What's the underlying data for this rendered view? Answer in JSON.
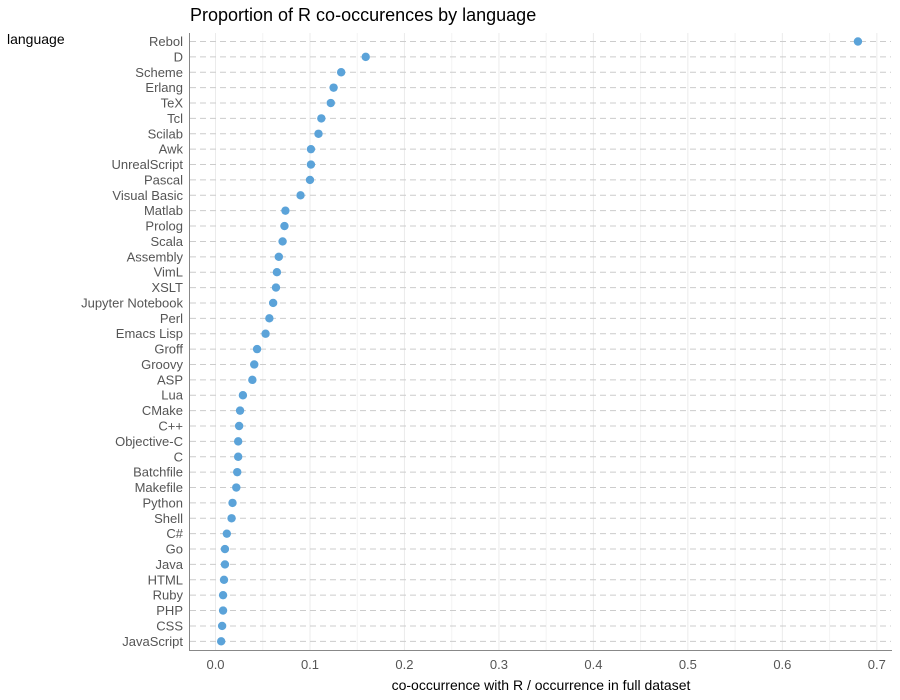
{
  "chart_data": {
    "type": "scatter",
    "title": "Proportion of R co-occurences by language",
    "xlabel": "co-occurrence with R / occurrence in full dataset",
    "ylabel": "language",
    "xlim": [
      -0.027,
      0.715
    ],
    "xticks": [
      "0.0",
      "0.1",
      "0.2",
      "0.3",
      "0.4",
      "0.5",
      "0.6",
      "0.7"
    ],
    "grid": true,
    "point_color": "#5ba3d9",
    "categories": [
      "Rebol",
      "D",
      "Scheme",
      "Erlang",
      "TeX",
      "Tcl",
      "Scilab",
      "Awk",
      "UnrealScript",
      "Pascal",
      "Visual Basic",
      "Matlab",
      "Prolog",
      "Scala",
      "Assembly",
      "VimL",
      "XSLT",
      "Jupyter Notebook",
      "Perl",
      "Emacs Lisp",
      "Groff",
      "Groovy",
      "ASP",
      "Lua",
      "CMake",
      "C++",
      "Objective-C",
      "C",
      "Batchfile",
      "Makefile",
      "Python",
      "Shell",
      "C#",
      "Go",
      "Java",
      "HTML",
      "Ruby",
      "PHP",
      "CSS",
      "JavaScript"
    ],
    "values": [
      0.68,
      0.159,
      0.133,
      0.125,
      0.122,
      0.112,
      0.109,
      0.101,
      0.101,
      0.1,
      0.09,
      0.074,
      0.073,
      0.071,
      0.067,
      0.065,
      0.064,
      0.061,
      0.057,
      0.053,
      0.044,
      0.041,
      0.039,
      0.029,
      0.026,
      0.025,
      0.024,
      0.024,
      0.023,
      0.022,
      0.018,
      0.017,
      0.012,
      0.01,
      0.01,
      0.009,
      0.008,
      0.008,
      0.007,
      0.006
    ]
  }
}
